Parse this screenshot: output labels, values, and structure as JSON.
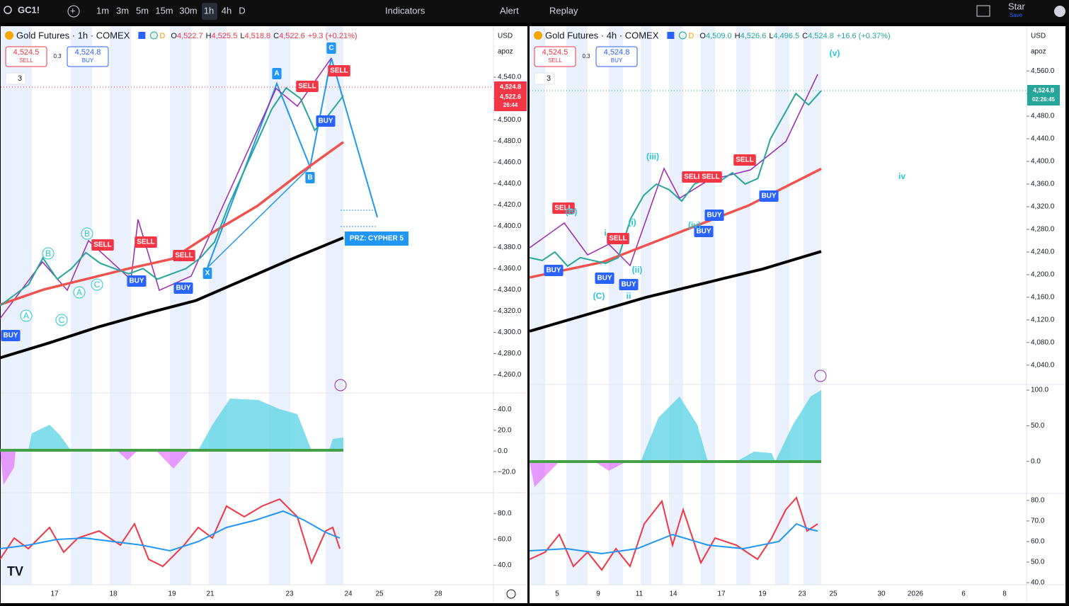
{
  "toolbar": {
    "symbol": "GC1!",
    "intervals": [
      "1m",
      "3m",
      "5m",
      "15m",
      "30m",
      "1h",
      "4h",
      "D"
    ],
    "active_interval": "1h",
    "indicators": "Indicators",
    "alert": "Alert",
    "replay": "Replay",
    "user": "Star",
    "save": "Save"
  },
  "panes": [
    {
      "title": "Gold Futures · 1h · COMEX",
      "ohlc": [
        {
          "key": "O",
          "value": "4,522.7"
        },
        {
          "key": "H",
          "value": "4,525.5"
        },
        {
          "key": "L",
          "value": "4,518.8"
        },
        {
          "key": "C",
          "value": "4,522.6"
        }
      ],
      "change": "+9.3 (+0.21%)",
      "sell_price": "4,524.5",
      "sell": "SELL",
      "spread": "0.3",
      "buy_price": "4,524.8",
      "buy": "BUY",
      "indicator_count": "3",
      "currency": "USD",
      "scale_mode": "apoz",
      "price_badges": [
        "4,524.8",
        "4,522.6",
        "26:44"
      ],
      "price_axis": {
        "lim": [
          4243,
          4588
        ],
        "ticks": [
          {
            "value": 4540,
            "label": "4,540.0"
          },
          {
            "value": 4520,
            "label": "4,520.0"
          },
          {
            "value": 4500,
            "label": "4,500.0"
          },
          {
            "value": 4480,
            "label": "4,480.0"
          },
          {
            "value": 4460,
            "label": "4,460.0"
          },
          {
            "value": 4440,
            "label": "4,440.0"
          },
          {
            "value": 4420,
            "label": "4,420.0"
          },
          {
            "value": 4400,
            "label": "4,400.0"
          },
          {
            "value": 4380,
            "label": "4,380.0"
          },
          {
            "value": 4360,
            "label": "4,360.0"
          },
          {
            "value": 4340,
            "label": "4,340.0"
          },
          {
            "value": 4320,
            "label": "4,320.0"
          },
          {
            "value": 4300,
            "label": "4,300.0"
          },
          {
            "value": 4280,
            "label": "4,280.0"
          },
          {
            "value": 4260,
            "label": "4,260.0"
          }
        ]
      },
      "price": [
        4325,
        4335,
        4345,
        4370,
        4350,
        4360,
        4375,
        4365,
        4360,
        4355,
        4360,
        4350,
        4355,
        4360,
        4370,
        4385,
        4420,
        4450,
        4480,
        4510,
        4530,
        4520,
        4490,
        4505,
        4522.6
      ],
      "ma_slow": [
        4276,
        4290,
        4305,
        4318,
        4330,
        4350,
        4370,
        4389
      ],
      "ma_mid": [
        4326,
        4340,
        4350,
        4360,
        4369,
        4395,
        4419,
        4450,
        4479
      ],
      "macd_axis": {
        "lim": [
          -40,
          56
        ],
        "ticks": [
          {
            "value": 40,
            "label": "40.0"
          },
          {
            "value": 20,
            "label": "20.0"
          },
          {
            "value": 0,
            "label": "0.0"
          },
          {
            "value": -20,
            "label": "−20.0"
          }
        ]
      },
      "rsi_axis": {
        "lim": [
          25,
          96
        ],
        "ticks": [
          {
            "value": 80,
            "label": "80.0"
          },
          {
            "value": 60,
            "label": "60.0"
          },
          {
            "value": 40,
            "label": "40.0"
          }
        ]
      },
      "dates": [
        "17",
        "18",
        "19",
        "21",
        "23",
        "24",
        "25",
        "28"
      ],
      "signals": [
        "BUY",
        "SELL",
        "SELL",
        "BUY",
        "SELL",
        "BUY",
        "SELL",
        "BUY",
        "SELL"
      ],
      "pattern_points": [
        "A",
        "B",
        "C",
        "X"
      ],
      "waves": [
        "B",
        "B",
        "A",
        "C",
        "A",
        "C"
      ],
      "prz": "PRZ: CYPHER 5"
    },
    {
      "title": "Gold Futures · 4h · COMEX",
      "ohlc": [
        {
          "key": "O",
          "value": "4,509.0"
        },
        {
          "key": "H",
          "value": "4,526.6"
        },
        {
          "key": "L",
          "value": "4,496.5"
        },
        {
          "key": "C",
          "value": "4,524.8"
        }
      ],
      "change": "+16.6 (+0.37%)",
      "sell_price": "4,524.5",
      "sell": "SELL",
      "spread": "0.3",
      "buy_price": "4,524.8",
      "buy": "BUY",
      "indicator_count": "3",
      "currency": "USD",
      "scale_mode": "apoz",
      "price_badges": [
        "4,524.8",
        "02:26:45"
      ],
      "price_axis": {
        "lim": [
          4006,
          4639
        ],
        "ticks": [
          {
            "value": 4560,
            "label": "4,560.0"
          },
          {
            "value": 4520,
            "label": "4,520.0"
          },
          {
            "value": 4480,
            "label": "4,480.0"
          },
          {
            "value": 4440,
            "label": "4,440.0"
          },
          {
            "value": 4400,
            "label": "4,400.0"
          },
          {
            "value": 4360,
            "label": "4,360.0"
          },
          {
            "value": 4320,
            "label": "4,320.0"
          },
          {
            "value": 4280,
            "label": "4,280.0"
          },
          {
            "value": 4240,
            "label": "4,240.0"
          },
          {
            "value": 4200,
            "label": "4,200.0"
          },
          {
            "value": 4160,
            "label": "4,160.0"
          },
          {
            "value": 4120,
            "label": "4,120.0"
          },
          {
            "value": 4080,
            "label": "4,080.0"
          },
          {
            "value": 4040,
            "label": "4,040.0"
          }
        ]
      },
      "price": [
        4230,
        4225,
        4240,
        4215,
        4230,
        4225,
        4220,
        4230,
        4300,
        4340,
        4360,
        4350,
        4330,
        4360,
        4370,
        4365,
        4380,
        4360,
        4370,
        4440,
        4480,
        4520,
        4500,
        4524.8
      ],
      "ma_slow": [
        4100,
        4130,
        4160,
        4185,
        4210,
        4241
      ],
      "ma_mid": [
        4195,
        4222,
        4272,
        4322,
        4387
      ],
      "macd_axis": {
        "lim": [
          -45,
          108
        ],
        "ticks": [
          {
            "value": 100,
            "label": "100.0"
          },
          {
            "value": 50,
            "label": "50.0"
          },
          {
            "value": 0,
            "label": "0.0"
          }
        ]
      },
      "rsi_axis": {
        "lim": [
          39,
          83.4
        ],
        "ticks": [
          {
            "value": 80,
            "label": "80.0"
          },
          {
            "value": 70,
            "label": "70.0"
          },
          {
            "value": 60,
            "label": "60.0"
          },
          {
            "value": 50,
            "label": "50.0"
          },
          {
            "value": 40,
            "label": "40.0"
          }
        ]
      },
      "dates": [
        "5",
        "9",
        "11",
        "14",
        "17",
        "19",
        "23",
        "25",
        "30",
        "2026",
        "6",
        "8"
      ],
      "signals": [
        "SELL",
        "BUY",
        "SELL",
        "BUY",
        "BUY",
        "SELL",
        "SELL",
        "BUY",
        "BUY",
        "SELL",
        "BUY"
      ],
      "waves": [
        "(iii)",
        "(i)",
        "i",
        "(C)",
        "ii",
        "(ii)",
        "(iv)",
        "iv",
        "(v)",
        "(B)"
      ]
    }
  ]
}
